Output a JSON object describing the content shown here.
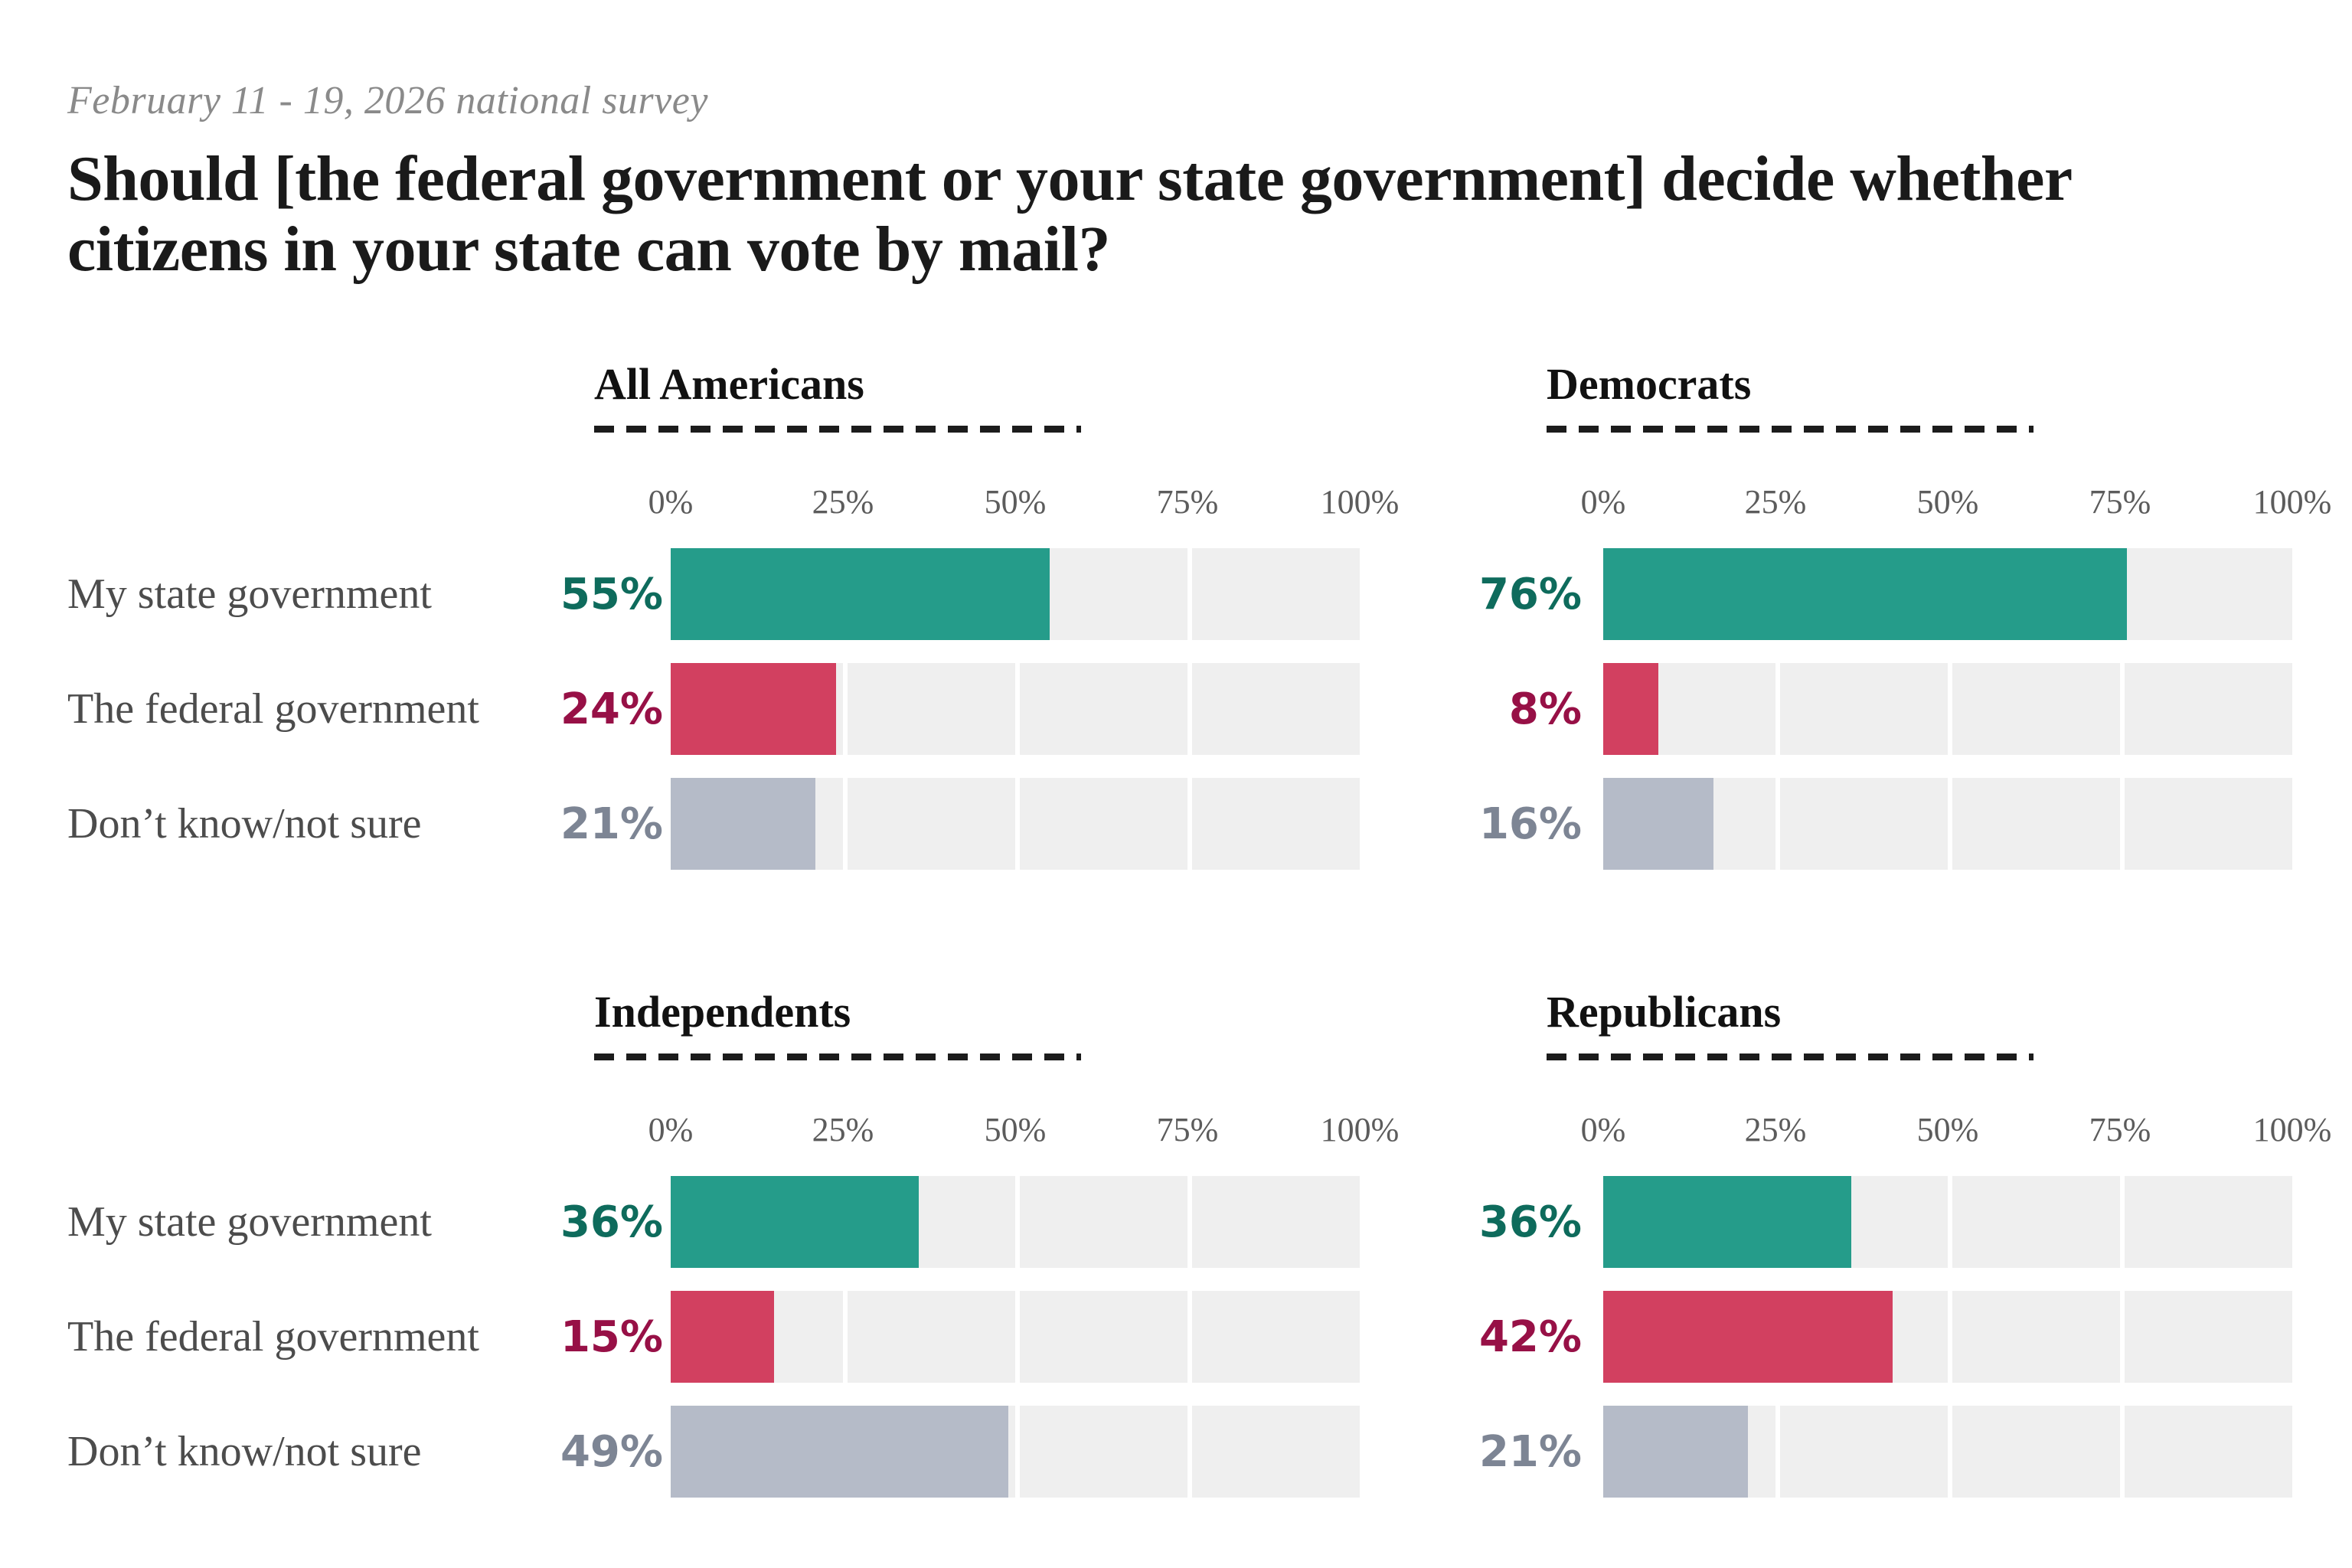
{
  "header": {
    "note": "February 11 - 19, 2026 national survey",
    "title_lines": [
      "Should [the federal government or your state government] decide whether",
      "citizens in your state can vote by mail?"
    ]
  },
  "colors": {
    "bar_teal": "#259c8a",
    "bar_red": "#d24060",
    "bar_gray_blue": "#b5bbc8",
    "track": "#efefef",
    "value_teal": "#0e6b5c",
    "value_red": "#971046",
    "value_gray": "#7d8594",
    "title_text": "#1a1a1a",
    "note_text": "#8a8a8a",
    "row_label_text": "#4c4c4c",
    "axis_text": "#5c5c5c"
  },
  "chart_data": {
    "type": "bar",
    "orientation": "horizontal",
    "unit": "percent",
    "title": "Should [the federal government or your state government] decide whether citizens in your state can vote by mail?",
    "subtitle": "February 11 - 19, 2026 national survey",
    "categories": [
      "My state government",
      "The federal government",
      "Don’t know/not sure"
    ],
    "x_ticks": [
      "0%",
      "25%",
      "50%",
      "75%",
      "100%"
    ],
    "xlim": [
      0,
      100
    ],
    "grid": "white dividers at 25/50/75",
    "legend": "none",
    "series_colors": [
      "teal",
      "red",
      "gray_blue"
    ],
    "groups": [
      {
        "name": "All Americans",
        "values": [
          55,
          24,
          21
        ],
        "display": [
          "55%",
          "24%",
          "21%"
        ]
      },
      {
        "name": "Democrats",
        "values": [
          76,
          8,
          16
        ],
        "display": [
          "76%",
          "8%",
          "16%"
        ]
      },
      {
        "name": "Independents",
        "values": [
          36,
          15,
          49
        ],
        "display": [
          "36%",
          "15%",
          "49%"
        ]
      },
      {
        "name": "Republicans",
        "values": [
          36,
          42,
          21
        ],
        "display": [
          "36%",
          "42%",
          "21%"
        ]
      }
    ]
  }
}
